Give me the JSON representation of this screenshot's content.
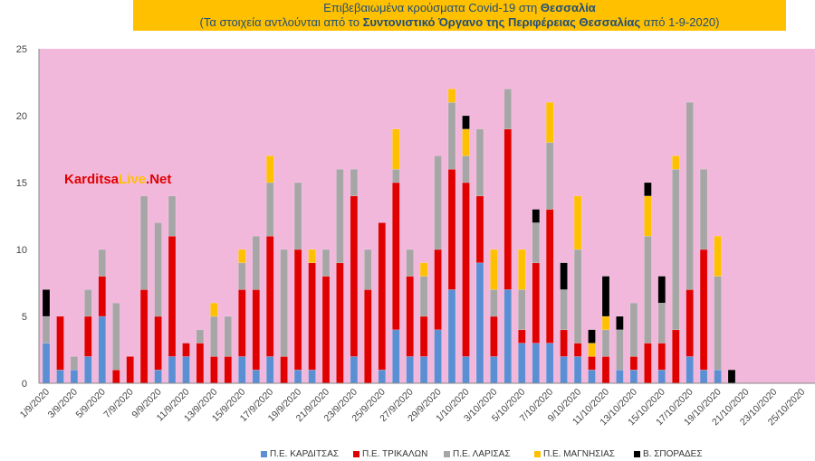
{
  "title": {
    "line1_prefix": "Επιβεβαιωμένα κρούσματα Covid-19 στη ",
    "line1_region": "Θεσσαλία",
    "line2_prefix": "(Τα στοιχεία αντλούνται από το ",
    "line2_source": "Συντονιστικό Όργανο της Περιφέρειας Θεσσαλίας",
    "line2_suffix": " από 1-9-2020)"
  },
  "watermark": {
    "part1": "Karditsa",
    "part2": "Live",
    "part3": ".Net"
  },
  "colors": {
    "plot_bg": "#f2b8dc",
    "karditsa": "#5b8fd4",
    "trikala": "#e00000",
    "larisa": "#a6a6a6",
    "magnisia": "#ffc000",
    "sporades": "#000000"
  },
  "chart_data": {
    "type": "bar",
    "stacked": true,
    "ylim": [
      0,
      25
    ],
    "yticks": [
      0,
      5,
      10,
      15,
      20,
      25
    ],
    "grid": false,
    "legend_position": "bottom",
    "x": [
      "1/9/2020",
      "2/9/2020",
      "3/9/2020",
      "4/9/2020",
      "5/9/2020",
      "6/9/2020",
      "7/9/2020",
      "8/9/2020",
      "9/9/2020",
      "10/9/2020",
      "11/9/2020",
      "12/9/2020",
      "13/9/2020",
      "14/9/2020",
      "15/9/2020",
      "16/9/2020",
      "17/9/2020",
      "18/9/2020",
      "19/9/2020",
      "20/9/2020",
      "21/9/2020",
      "22/9/2020",
      "23/9/2020",
      "24/9/2020",
      "25/9/2020",
      "26/9/2020",
      "27/9/2020",
      "28/9/2020",
      "29/9/2020",
      "30/9/2020",
      "1/10/2020",
      "2/10/2020",
      "3/10/2020",
      "4/10/2020",
      "5/10/2020",
      "6/10/2020",
      "7/10/2020",
      "8/10/2020",
      "9/10/2020",
      "10/10/2020",
      "11/10/2020",
      "12/10/2020",
      "13/10/2020",
      "14/10/2020",
      "15/10/2020",
      "16/10/2020",
      "17/10/2020",
      "18/10/2020",
      "19/10/2020",
      "20/10/2020",
      "21/10/2020",
      "22/10/2020",
      "23/10/2020",
      "24/10/2020",
      "25/10/2020"
    ],
    "tick_labels": [
      "1/9/2020",
      "3/9/2020",
      "5/9/2020",
      "7/9/2020",
      "9/9/2020",
      "11/9/2020",
      "13/9/2020",
      "15/9/2020",
      "17/9/2020",
      "19/9/2020",
      "21/9/2020",
      "23/9/2020",
      "25/9/2020",
      "27/9/2020",
      "29/9/2020",
      "1/10/2020",
      "3/10/2020",
      "5/10/2020",
      "7/10/2020",
      "9/10/2020",
      "11/10/2020",
      "13/10/2020",
      "15/10/2020",
      "17/10/2020",
      "19/10/2020",
      "21/10/2020",
      "23/10/2020",
      "25/10/2020"
    ],
    "series": [
      {
        "name": "Π.Ε. ΚΑΡΔΙΤΣΑΣ",
        "color_key": "karditsa",
        "values": [
          3,
          1,
          1,
          2,
          5,
          0,
          0,
          0,
          1,
          2,
          2,
          0,
          0,
          0,
          2,
          1,
          2,
          0,
          1,
          1,
          0,
          0,
          2,
          0,
          1,
          4,
          2,
          2,
          4,
          7,
          2,
          9,
          2,
          7,
          3,
          3,
          3,
          2,
          2,
          1,
          0,
          1,
          1,
          0,
          1,
          0,
          2,
          1,
          1,
          0,
          0,
          0,
          0,
          0,
          0
        ]
      },
      {
        "name": "Π.Ε. ΤΡΙΚΑΛΩΝ",
        "color_key": "trikala",
        "values": [
          0,
          4,
          0,
          3,
          3,
          1,
          2,
          7,
          4,
          9,
          1,
          3,
          2,
          2,
          5,
          6,
          9,
          2,
          9,
          8,
          8,
          9,
          12,
          7,
          11,
          11,
          6,
          3,
          6,
          9,
          13,
          5,
          3,
          12,
          1,
          6,
          10,
          2,
          1,
          1,
          2,
          0,
          1,
          3,
          2,
          4,
          5,
          9,
          0,
          0,
          0,
          0,
          0,
          0,
          0
        ]
      },
      {
        "name": "Π.Ε. ΛΑΡΙΣΑΣ",
        "color_key": "larisa",
        "values": [
          2,
          0,
          1,
          2,
          2,
          5,
          0,
          7,
          7,
          3,
          0,
          1,
          3,
          3,
          2,
          4,
          4,
          8,
          5,
          0,
          2,
          7,
          2,
          3,
          0,
          1,
          2,
          3,
          7,
          5,
          2,
          5,
          2,
          3,
          3,
          3,
          5,
          3,
          7,
          0,
          2,
          3,
          4,
          8,
          3,
          12,
          14,
          6,
          7,
          0,
          0,
          0,
          0,
          0,
          0
        ]
      },
      {
        "name": "Π.Ε. ΜΑΓΝΗΣΙΑΣ",
        "color_key": "magnisia",
        "values": [
          0,
          0,
          0,
          0,
          0,
          0,
          0,
          0,
          0,
          0,
          0,
          0,
          1,
          0,
          1,
          0,
          2,
          0,
          0,
          1,
          0,
          0,
          0,
          0,
          0,
          3,
          0,
          1,
          0,
          1,
          2,
          0,
          3,
          0,
          3,
          0,
          3,
          0,
          4,
          1,
          1,
          0,
          0,
          3,
          0,
          1,
          0,
          0,
          3,
          0,
          0,
          0,
          0,
          0,
          0
        ]
      },
      {
        "name": "Β. ΣΠΟΡΑΔΕΣ",
        "color_key": "sporades",
        "values": [
          2,
          0,
          0,
          0,
          0,
          0,
          0,
          0,
          0,
          0,
          0,
          0,
          0,
          0,
          0,
          0,
          0,
          0,
          0,
          0,
          0,
          0,
          0,
          0,
          0,
          0,
          0,
          0,
          0,
          0,
          1,
          0,
          0,
          0,
          0,
          1,
          0,
          2,
          0,
          1,
          3,
          1,
          0,
          1,
          2,
          0,
          0,
          0,
          0,
          1,
          0,
          0,
          0,
          0,
          0
        ]
      }
    ]
  },
  "legend": [
    {
      "label": "Π.Ε. ΚΑΡΔΙΤΣΑΣ",
      "color_key": "karditsa"
    },
    {
      "label": "Π.Ε. ΤΡΙΚΑΛΩΝ",
      "color_key": "trikala"
    },
    {
      "label": "Π.Ε. ΛΑΡΙΣΑΣ",
      "color_key": "larisa"
    },
    {
      "label": "Π.Ε. ΜΑΓΝΗΣΙΑΣ",
      "color_key": "magnisia"
    },
    {
      "label": "Β. ΣΠΟΡΑΔΕΣ",
      "color_key": "sporades"
    }
  ]
}
